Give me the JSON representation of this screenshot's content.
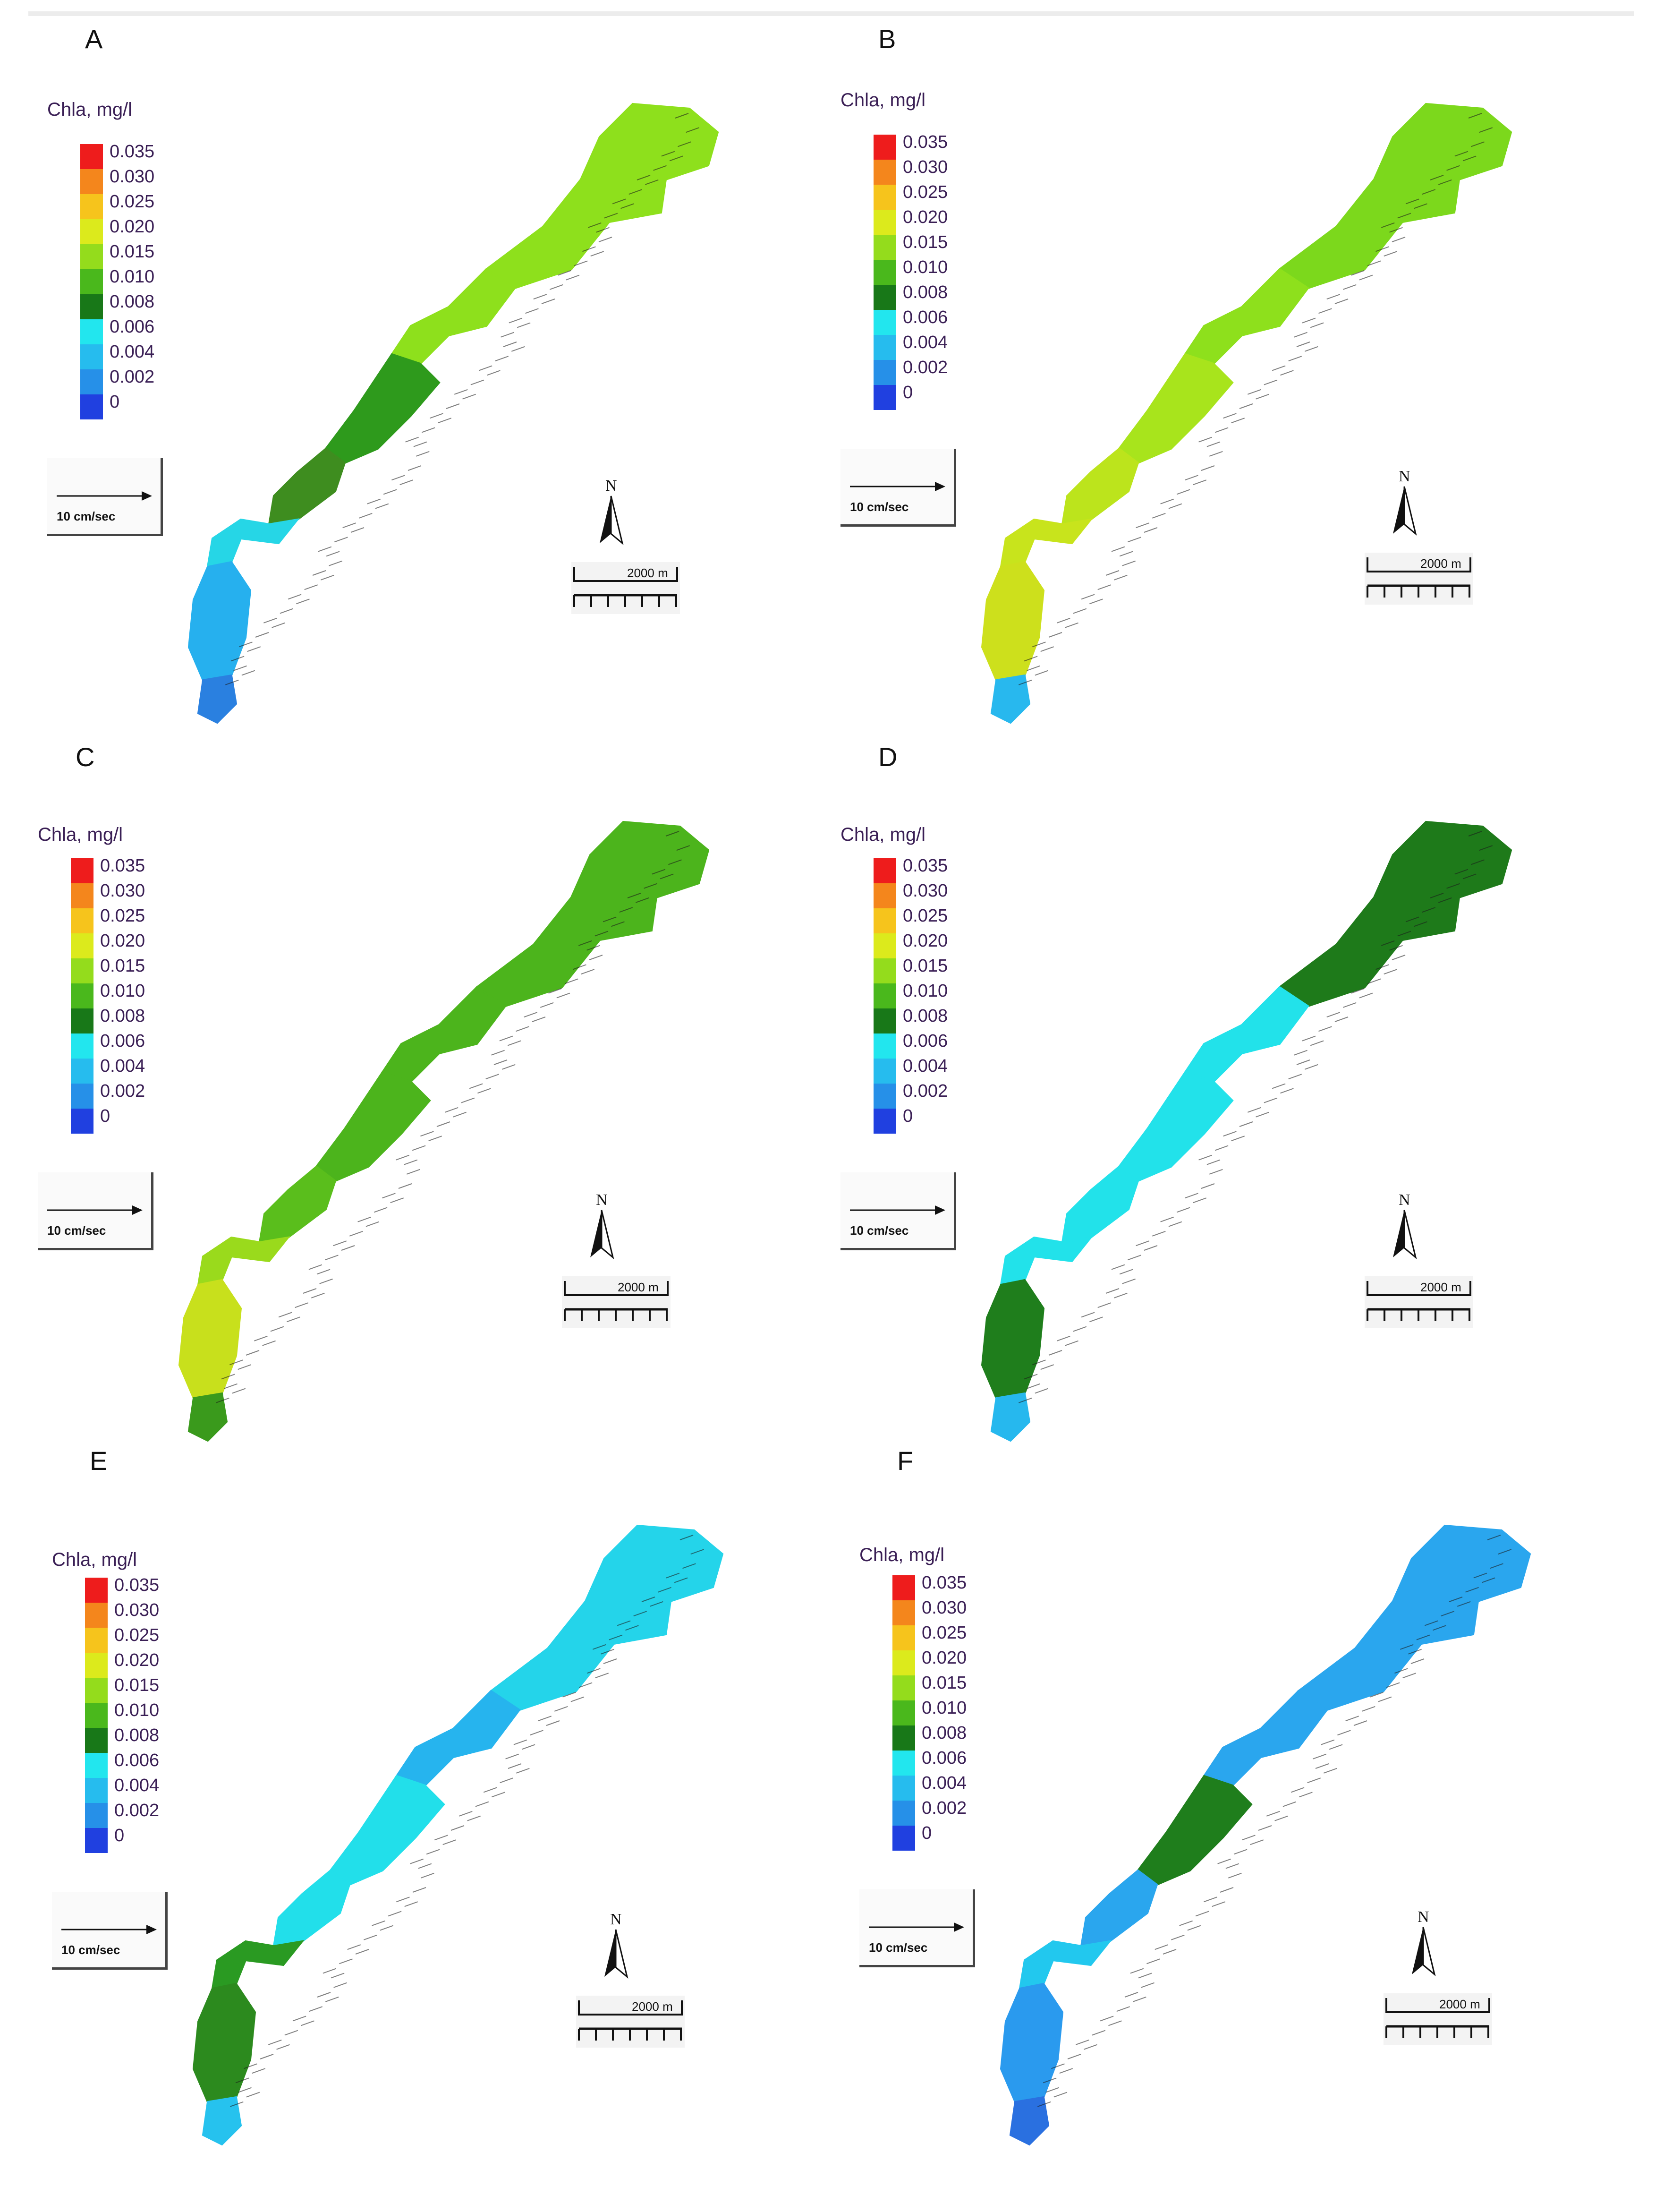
{
  "colorbar": {
    "title": "Chla, mg/l",
    "levels": [
      "0.035",
      "0.030",
      "0.025",
      "0.020",
      "0.015",
      "0.010",
      "0.008",
      "0.006",
      "0.004",
      "0.002",
      "0"
    ],
    "colors": [
      "#ee1c1c",
      "#f4861c",
      "#f6c41c",
      "#dcea1c",
      "#94dc1c",
      "#4ab81c",
      "#187818",
      "#22e6ee",
      "#26bcee",
      "#2690e8",
      "#2040e0"
    ]
  },
  "vector_scale": {
    "label": "10 cm/sec"
  },
  "north_arrow": {
    "label": "N"
  },
  "scale_bar": {
    "label": "2000 m"
  },
  "panels": [
    {
      "id": "A",
      "label": "A",
      "zones": {
        "head": "#8ee01c",
        "neck": "#8ee01c",
        "mid": "#2e9a1c",
        "lower": "#3e8d1f",
        "bend": "#26d6e6",
        "tail": "#26b0ee",
        "tip": "#2a80e0"
      }
    },
    {
      "id": "B",
      "label": "B",
      "zones": {
        "head": "#7cd81c",
        "neck": "#8ee01c",
        "mid": "#a8e41c",
        "lower": "#bce41c",
        "bend": "#c8e41c",
        "tail": "#cde01c",
        "tip": "#28b8ee"
      }
    },
    {
      "id": "C",
      "label": "C",
      "zones": {
        "head": "#4cb41c",
        "neck": "#4cb41c",
        "mid": "#4cb41c",
        "lower": "#5abe1c",
        "bend": "#9ada1c",
        "tail": "#c8e01c",
        "tip": "#3a9a1c"
      }
    },
    {
      "id": "D",
      "label": "D",
      "zones": {
        "head": "#1e7a1a",
        "neck": "#22e2ea",
        "mid": "#22e2ea",
        "lower": "#22e2ea",
        "bend": "#22e2ea",
        "tail": "#1f7e1c",
        "tip": "#26b8ee"
      }
    },
    {
      "id": "E",
      "label": "E",
      "zones": {
        "head": "#24d4ea",
        "neck": "#26b4ee",
        "mid": "#22dfea",
        "lower": "#22dfea",
        "bend": "#2a9a22",
        "tail": "#2c8a1e",
        "tip": "#26c2ee"
      }
    },
    {
      "id": "F",
      "label": "F",
      "zones": {
        "head": "#2aa6ee",
        "neck": "#2aa6ee",
        "mid": "#1f7e1c",
        "lower": "#2aa6ee",
        "bend": "#22c8ee",
        "tail": "#2a9aee",
        "tip": "#2a70e0"
      }
    }
  ]
}
